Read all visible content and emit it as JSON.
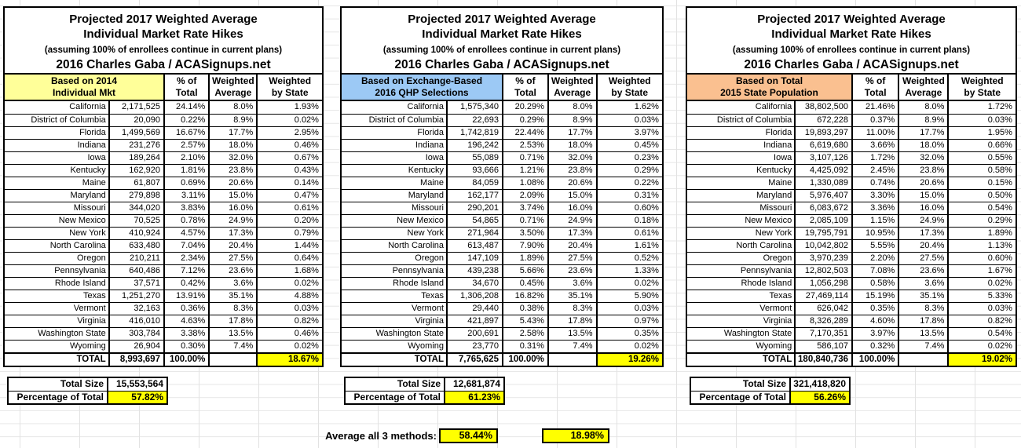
{
  "accent_colors": {
    "highlight_yellow": "#FFFF00",
    "header_yellow": "#FFFF99",
    "header_blue": "#9CC9F5",
    "header_orange": "#FAC090",
    "border_black": "#000000",
    "gridline_gray": "#E4E4E4"
  },
  "chart_data": [
    {
      "type": "table",
      "title": [
        "Projected 2017 Weighted Average",
        "Individual Market Rate Hikes",
        "(assuming 100% of enrollees continue in current plans)",
        "2016 Charles Gaba / ACASignups.net"
      ],
      "group_header": [
        "Based on 2014",
        "Individual Mkt"
      ],
      "group_header_color": "#FFFF99",
      "col_headers": [
        [
          "% of",
          "Total"
        ],
        [
          "Weighted",
          "Average"
        ],
        [
          "Weighted",
          "by State"
        ]
      ],
      "rows": [
        [
          "California",
          "2,171,525",
          "24.14%",
          "8.0%",
          "1.93%"
        ],
        [
          "District of Columbia",
          "20,090",
          "0.22%",
          "8.9%",
          "0.02%"
        ],
        [
          "Florida",
          "1,499,569",
          "16.67%",
          "17.7%",
          "2.95%"
        ],
        [
          "Indiana",
          "231,276",
          "2.57%",
          "18.0%",
          "0.46%"
        ],
        [
          "Iowa",
          "189,264",
          "2.10%",
          "32.0%",
          "0.67%"
        ],
        [
          "Kentucky",
          "162,920",
          "1.81%",
          "23.8%",
          "0.43%"
        ],
        [
          "Maine",
          "61,807",
          "0.69%",
          "20.6%",
          "0.14%"
        ],
        [
          "Maryland",
          "279,898",
          "3.11%",
          "15.0%",
          "0.47%"
        ],
        [
          "Missouri",
          "344,020",
          "3.83%",
          "16.0%",
          "0.61%"
        ],
        [
          "New Mexico",
          "70,525",
          "0.78%",
          "24.9%",
          "0.20%"
        ],
        [
          "New York",
          "410,924",
          "4.57%",
          "17.3%",
          "0.79%"
        ],
        [
          "North Carolina",
          "633,480",
          "7.04%",
          "20.4%",
          "1.44%"
        ],
        [
          "Oregon",
          "210,211",
          "2.34%",
          "27.5%",
          "0.64%"
        ],
        [
          "Pennsylvania",
          "640,486",
          "7.12%",
          "23.6%",
          "1.68%"
        ],
        [
          "Rhode Island",
          "37,571",
          "0.42%",
          "3.6%",
          "0.02%"
        ],
        [
          "Texas",
          "1,251,270",
          "13.91%",
          "35.1%",
          "4.88%"
        ],
        [
          "Vermont",
          "32,163",
          "0.36%",
          "8.3%",
          "0.03%"
        ],
        [
          "Virginia",
          "416,010",
          "4.63%",
          "17.8%",
          "0.82%"
        ],
        [
          "Washington State",
          "303,784",
          "3.38%",
          "13.5%",
          "0.46%"
        ],
        [
          "Wyoming",
          "26,904",
          "0.30%",
          "7.4%",
          "0.02%"
        ]
      ],
      "total_row": [
        "TOTAL",
        "8,993,697",
        "100.00%",
        "",
        "18.67%"
      ],
      "footer": {
        "total_size_label": "Total Size",
        "total_size_value": "15,553,564",
        "pct_label": "Percentage of Total",
        "pct_value": "57.82%"
      }
    },
    {
      "type": "table",
      "title": [
        "Projected 2017 Weighted Average",
        "Individual Market Rate Hikes",
        "(assuming 100% of enrollees continue in current plans)",
        "2016 Charles Gaba / ACASignups.net"
      ],
      "group_header": [
        "Based on Exchange-Based",
        "2016 QHP Selections"
      ],
      "group_header_color": "#9CC9F5",
      "col_headers": [
        [
          "% of",
          "Total"
        ],
        [
          "Weighted",
          "Average"
        ],
        [
          "Weighted",
          "by State"
        ]
      ],
      "rows": [
        [
          "California",
          "1,575,340",
          "20.29%",
          "8.0%",
          "1.62%"
        ],
        [
          "District of Columbia",
          "22,693",
          "0.29%",
          "8.9%",
          "0.03%"
        ],
        [
          "Florida",
          "1,742,819",
          "22.44%",
          "17.7%",
          "3.97%"
        ],
        [
          "Indiana",
          "196,242",
          "2.53%",
          "18.0%",
          "0.45%"
        ],
        [
          "Iowa",
          "55,089",
          "0.71%",
          "32.0%",
          "0.23%"
        ],
        [
          "Kentucky",
          "93,666",
          "1.21%",
          "23.8%",
          "0.29%"
        ],
        [
          "Maine",
          "84,059",
          "1.08%",
          "20.6%",
          "0.22%"
        ],
        [
          "Maryland",
          "162,177",
          "2.09%",
          "15.0%",
          "0.31%"
        ],
        [
          "Missouri",
          "290,201",
          "3.74%",
          "16.0%",
          "0.60%"
        ],
        [
          "New Mexico",
          "54,865",
          "0.71%",
          "24.9%",
          "0.18%"
        ],
        [
          "New York",
          "271,964",
          "3.50%",
          "17.3%",
          "0.61%"
        ],
        [
          "North Carolina",
          "613,487",
          "7.90%",
          "20.4%",
          "1.61%"
        ],
        [
          "Oregon",
          "147,109",
          "1.89%",
          "27.5%",
          "0.52%"
        ],
        [
          "Pennsylvania",
          "439,238",
          "5.66%",
          "23.6%",
          "1.33%"
        ],
        [
          "Rhode Island",
          "34,670",
          "0.45%",
          "3.6%",
          "0.02%"
        ],
        [
          "Texas",
          "1,306,208",
          "16.82%",
          "35.1%",
          "5.90%"
        ],
        [
          "Vermont",
          "29,440",
          "0.38%",
          "8.3%",
          "0.03%"
        ],
        [
          "Virginia",
          "421,897",
          "5.43%",
          "17.8%",
          "0.97%"
        ],
        [
          "Washington State",
          "200,691",
          "2.58%",
          "13.5%",
          "0.35%"
        ],
        [
          "Wyoming",
          "23,770",
          "0.31%",
          "7.4%",
          "0.02%"
        ]
      ],
      "total_row": [
        "TOTAL",
        "7,765,625",
        "100.00%",
        "",
        "19.26%"
      ],
      "footer": {
        "total_size_label": "Total Size",
        "total_size_value": "12,681,874",
        "pct_label": "Percentage of Total",
        "pct_value": "61.23%"
      }
    },
    {
      "type": "table",
      "title": [
        "Projected 2017 Weighted Average",
        "Individual Market Rate Hikes",
        "(assuming 100% of enrollees continue in current plans)",
        "2016 Charles Gaba / ACASignups.net"
      ],
      "group_header": [
        "Based on Total",
        "2015 State Population"
      ],
      "group_header_color": "#FAC090",
      "col_headers": [
        [
          "% of",
          "Total"
        ],
        [
          "Weighted",
          "Average"
        ],
        [
          "Weighted",
          "by State"
        ]
      ],
      "rows": [
        [
          "California",
          "38,802,500",
          "21.46%",
          "8.0%",
          "1.72%"
        ],
        [
          "District of Columbia",
          "672,228",
          "0.37%",
          "8.9%",
          "0.03%"
        ],
        [
          "Florida",
          "19,893,297",
          "11.00%",
          "17.7%",
          "1.95%"
        ],
        [
          "Indiana",
          "6,619,680",
          "3.66%",
          "18.0%",
          "0.66%"
        ],
        [
          "Iowa",
          "3,107,126",
          "1.72%",
          "32.0%",
          "0.55%"
        ],
        [
          "Kentucky",
          "4,425,092",
          "2.45%",
          "23.8%",
          "0.58%"
        ],
        [
          "Maine",
          "1,330,089",
          "0.74%",
          "20.6%",
          "0.15%"
        ],
        [
          "Maryland",
          "5,976,407",
          "3.30%",
          "15.0%",
          "0.50%"
        ],
        [
          "Missouri",
          "6,083,672",
          "3.36%",
          "16.0%",
          "0.54%"
        ],
        [
          "New Mexico",
          "2,085,109",
          "1.15%",
          "24.9%",
          "0.29%"
        ],
        [
          "New York",
          "19,795,791",
          "10.95%",
          "17.3%",
          "1.89%"
        ],
        [
          "North Carolina",
          "10,042,802",
          "5.55%",
          "20.4%",
          "1.13%"
        ],
        [
          "Oregon",
          "3,970,239",
          "2.20%",
          "27.5%",
          "0.60%"
        ],
        [
          "Pennsylvania",
          "12,802,503",
          "7.08%",
          "23.6%",
          "1.67%"
        ],
        [
          "Rhode Island",
          "1,056,298",
          "0.58%",
          "3.6%",
          "0.02%"
        ],
        [
          "Texas",
          "27,469,114",
          "15.19%",
          "35.1%",
          "5.33%"
        ],
        [
          "Vermont",
          "626,042",
          "0.35%",
          "8.3%",
          "0.03%"
        ],
        [
          "Virginia",
          "8,326,289",
          "4.60%",
          "17.8%",
          "0.82%"
        ],
        [
          "Washington State",
          "7,170,351",
          "3.97%",
          "13.5%",
          "0.54%"
        ],
        [
          "Wyoming",
          "586,107",
          "0.32%",
          "7.4%",
          "0.02%"
        ]
      ],
      "total_row": [
        "TOTAL",
        "180,840,736",
        "100.00%",
        "",
        "19.02%"
      ],
      "footer": {
        "total_size_label": "Total Size",
        "total_size_value": "321,418,820",
        "pct_label": "Percentage of Total",
        "pct_value": "56.26%"
      }
    }
  ],
  "average": {
    "label": "Average all 3 methods:",
    "values": [
      "58.44%",
      "18.98%"
    ]
  }
}
